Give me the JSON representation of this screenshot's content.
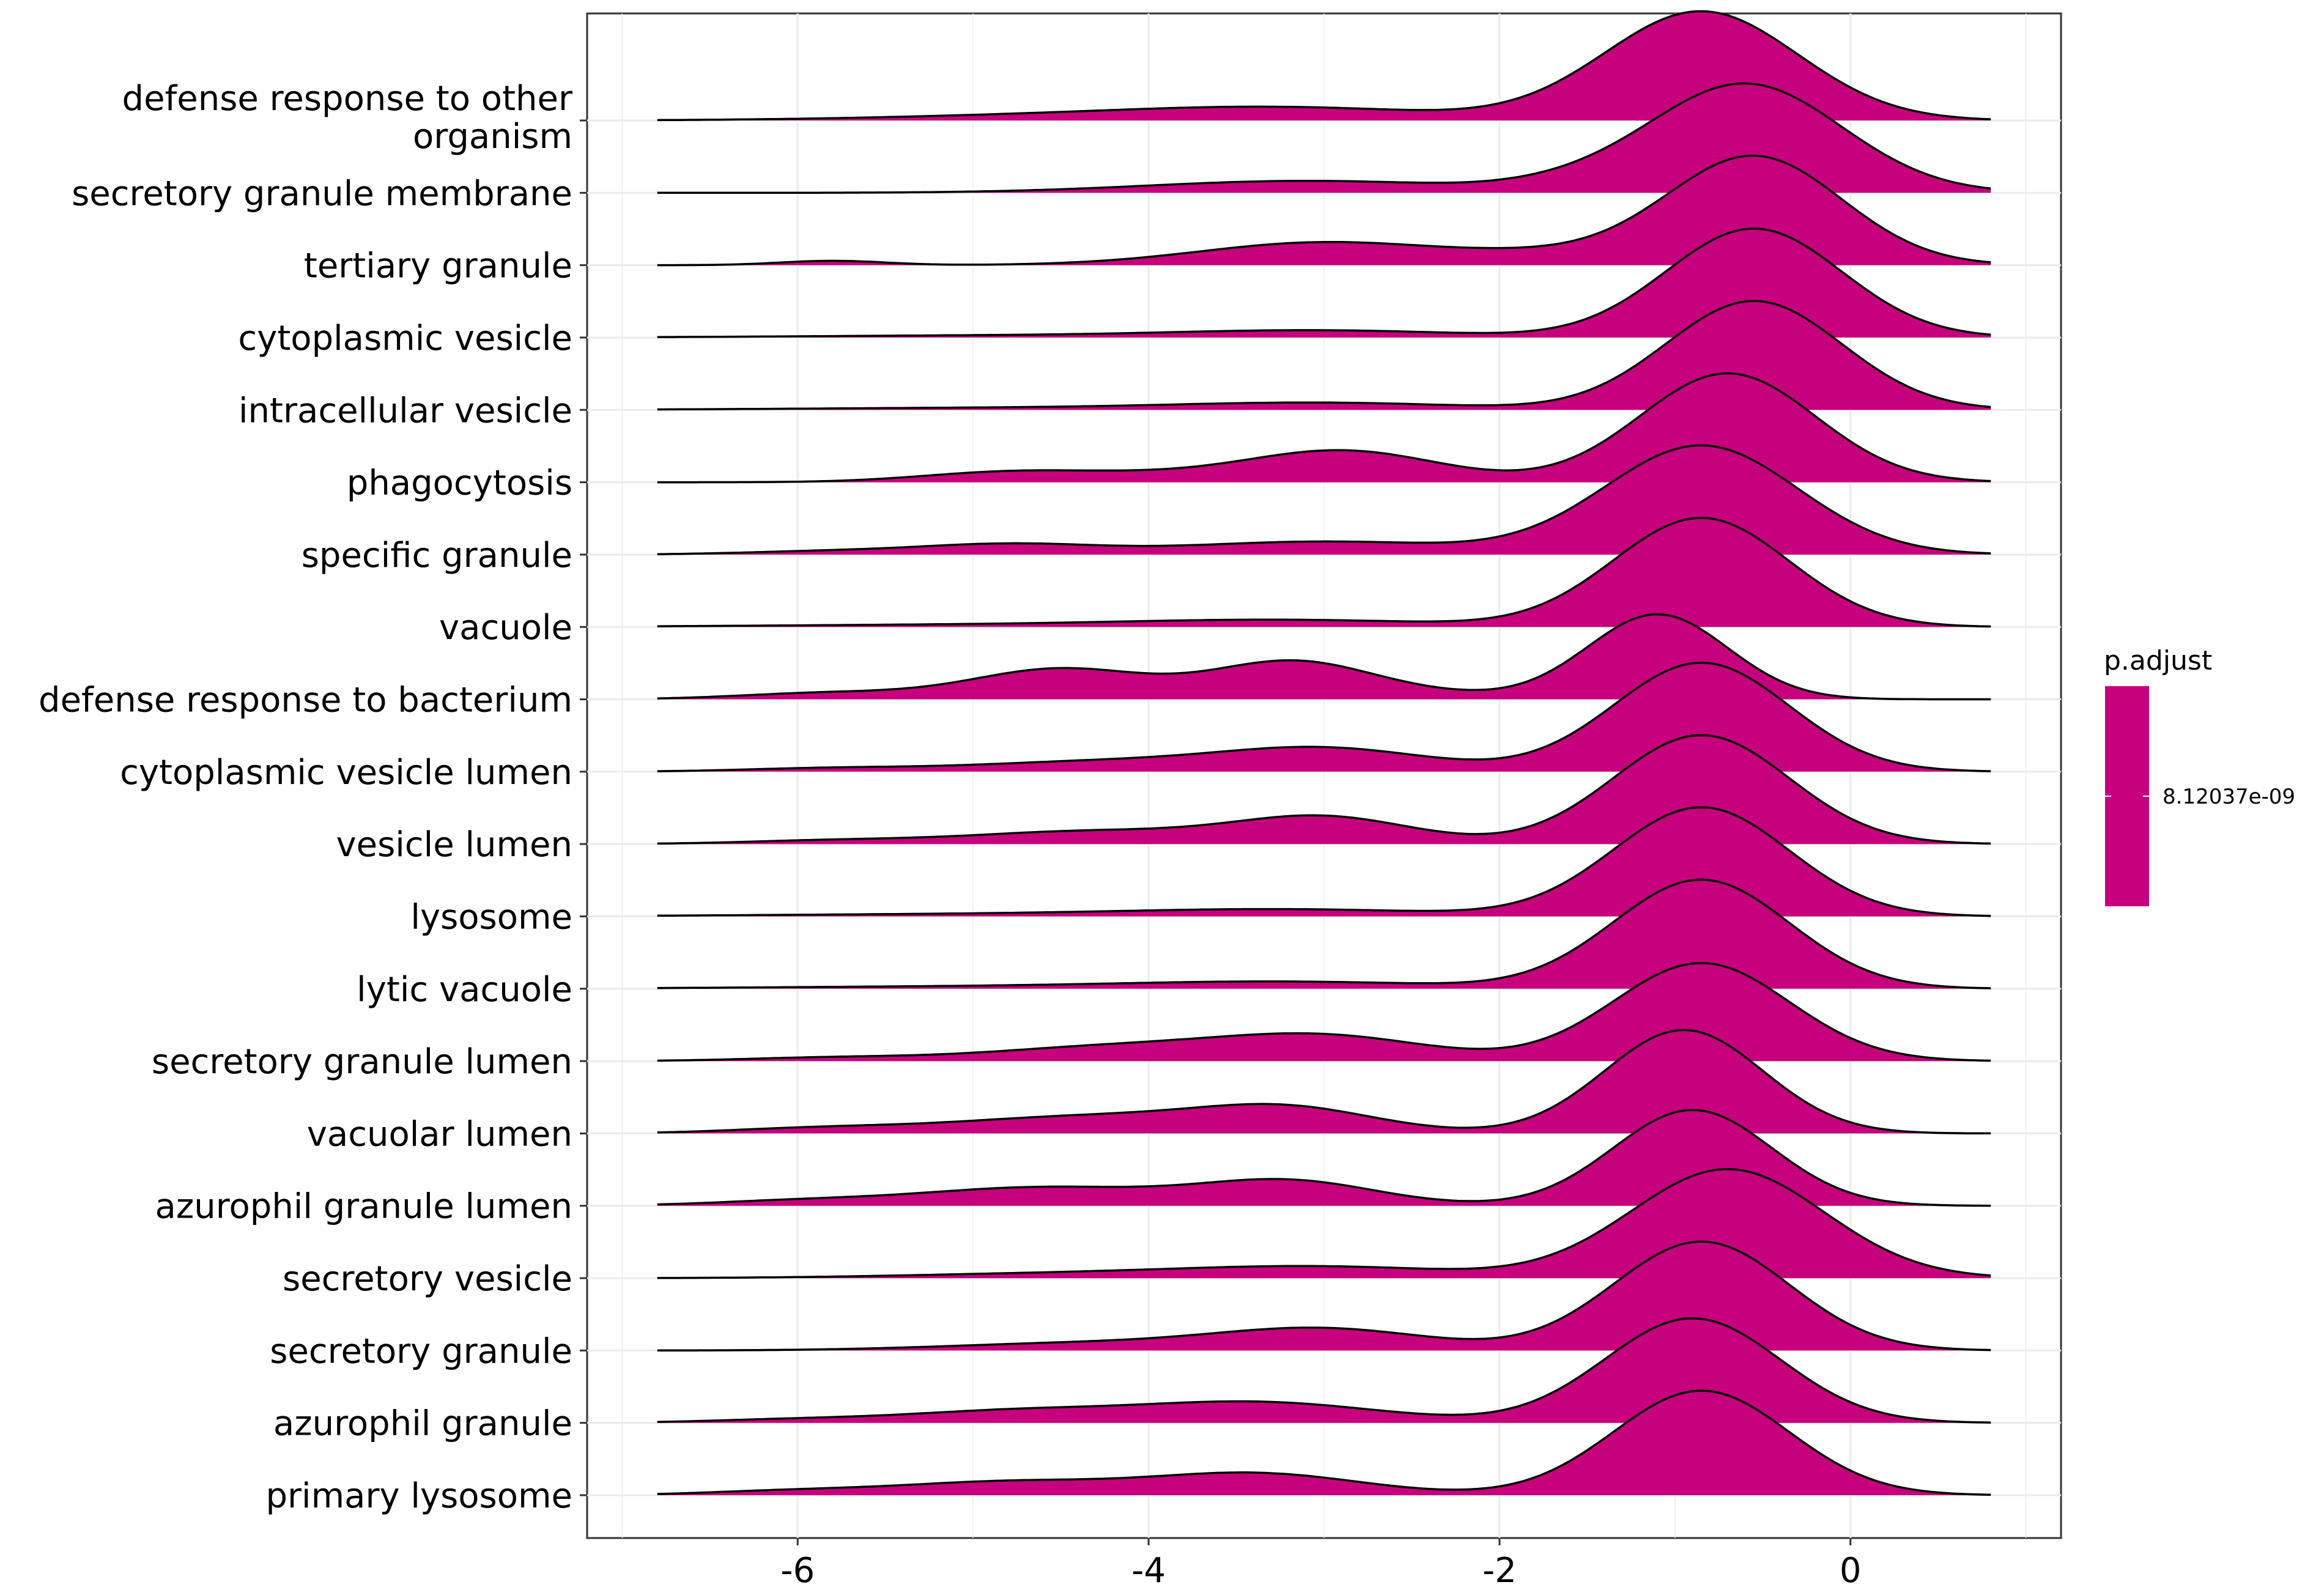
{
  "chart_data": {
    "type": "ridgeline",
    "xlabel": "",
    "ylabel": "",
    "xlim": [
      -7.2,
      1.2
    ],
    "x_ticks": [
      -6,
      -4,
      -2,
      0
    ],
    "x_tick_labels": [
      "-6",
      "-4",
      "-2",
      "0"
    ],
    "x_range": [
      -6.8,
      0.8
    ],
    "fill_color": "#C7007D",
    "line_color": "#000000",
    "grid": true,
    "legend": {
      "title": "p.adjust",
      "position": "right",
      "label": "8.12037e-09",
      "color": "#C7007D"
    },
    "categories_top_to_bottom": [
      "defense response to other\norganism",
      "secretory granule membrane",
      "tertiary granule",
      "cytoplasmic vesicle",
      "intracellular vesicle",
      "phagocytosis",
      "specific granule",
      "vacuole",
      "defense response to bacterium",
      "cytoplasmic vesicle lumen",
      "vesicle lumen",
      "lysosome",
      "lytic vacuole",
      "secretory granule lumen",
      "vacuolar lumen",
      "azurophil granule lumen",
      "secretory vesicle",
      "secretory granule",
      "azurophil granule",
      "primary lysosome"
    ],
    "series": [
      {
        "name": "defense response to other\norganism",
        "components": [
          [
            1.0,
            -0.85,
            0.55
          ],
          [
            0.11,
            -3.2,
            0.9
          ],
          [
            0.04,
            -4.6,
            1.0
          ]
        ]
      },
      {
        "name": "secretory granule membrane",
        "components": [
          [
            1.0,
            -0.6,
            0.55
          ],
          [
            0.11,
            -3.1,
            0.9
          ],
          [
            0.05,
            -1.6,
            0.4
          ]
        ]
      },
      {
        "name": "tertiary granule",
        "components": [
          [
            1.0,
            -0.55,
            0.5
          ],
          [
            0.21,
            -3.0,
            0.7
          ],
          [
            0.04,
            -5.8,
            0.3
          ],
          [
            0.08,
            -1.7,
            0.5
          ]
        ]
      },
      {
        "name": "cytoplasmic vesicle",
        "components": [
          [
            1.0,
            -0.55,
            0.5
          ],
          [
            0.06,
            -3.0,
            0.8
          ],
          [
            0.02,
            -4.7,
            1.2
          ]
        ]
      },
      {
        "name": "intracellular vesicle",
        "components": [
          [
            1.0,
            -0.55,
            0.5
          ],
          [
            0.06,
            -3.0,
            0.8
          ],
          [
            0.02,
            -4.7,
            1.2
          ]
        ]
      },
      {
        "name": "phagocytosis",
        "components": [
          [
            1.0,
            -0.7,
            0.5
          ],
          [
            0.29,
            -2.9,
            0.55
          ],
          [
            0.09,
            -4.8,
            0.5
          ],
          [
            0.05,
            -4.0,
            0.5
          ]
        ]
      },
      {
        "name": "specific granule",
        "components": [
          [
            1.0,
            -0.85,
            0.55
          ],
          [
            0.12,
            -3.0,
            0.8
          ],
          [
            0.09,
            -4.8,
            0.5
          ],
          [
            0.03,
            -5.8,
            0.5
          ]
        ]
      },
      {
        "name": "vacuole",
        "components": [
          [
            1.0,
            -0.85,
            0.5
          ],
          [
            0.06,
            -3.2,
            0.9
          ],
          [
            0.02,
            -5.0,
            1.2
          ]
        ]
      },
      {
        "name": "defense response to bacterium",
        "components": [
          [
            0.78,
            -1.1,
            0.4
          ],
          [
            0.33,
            -3.2,
            0.45
          ],
          [
            0.28,
            -4.5,
            0.5
          ],
          [
            0.06,
            -5.8,
            0.5
          ],
          [
            0.05,
            -2.5,
            0.5
          ]
        ]
      },
      {
        "name": "cytoplasmic vesicle lumen",
        "components": [
          [
            1.0,
            -0.85,
            0.5
          ],
          [
            0.21,
            -3.0,
            0.6
          ],
          [
            0.09,
            -4.3,
            0.7
          ],
          [
            0.03,
            -5.8,
            0.5
          ]
        ]
      },
      {
        "name": "vesicle lumen",
        "components": [
          [
            1.0,
            -0.85,
            0.5
          ],
          [
            0.24,
            -3.0,
            0.5
          ],
          [
            0.12,
            -4.3,
            0.7
          ],
          [
            0.03,
            -5.8,
            0.5
          ]
        ]
      },
      {
        "name": "lysosome",
        "components": [
          [
            1.0,
            -0.85,
            0.5
          ],
          [
            0.06,
            -3.2,
            0.9
          ],
          [
            0.02,
            -5.0,
            1.2
          ]
        ]
      },
      {
        "name": "lytic vacuole",
        "components": [
          [
            1.0,
            -0.85,
            0.5
          ],
          [
            0.06,
            -3.2,
            0.9
          ],
          [
            0.02,
            -5.0,
            1.2
          ]
        ]
      },
      {
        "name": "secretory granule lumen",
        "components": [
          [
            0.9,
            -0.85,
            0.5
          ],
          [
            0.22,
            -3.0,
            0.6
          ],
          [
            0.13,
            -4.2,
            0.7
          ],
          [
            0.03,
            -5.8,
            0.5
          ]
        ]
      },
      {
        "name": "vacuolar lumen",
        "components": [
          [
            0.95,
            -0.95,
            0.45
          ],
          [
            0.2,
            -3.2,
            0.5
          ],
          [
            0.16,
            -4.3,
            0.8
          ],
          [
            0.04,
            -5.9,
            0.5
          ]
        ]
      },
      {
        "name": "azurophil granule lumen",
        "components": [
          [
            0.88,
            -0.9,
            0.45
          ],
          [
            0.22,
            -3.2,
            0.5
          ],
          [
            0.17,
            -4.6,
            0.7
          ],
          [
            0.04,
            -6.0,
            0.5
          ]
        ]
      },
      {
        "name": "secretory vesicle",
        "components": [
          [
            1.0,
            -0.7,
            0.55
          ],
          [
            0.1,
            -3.0,
            0.8
          ],
          [
            0.04,
            -4.5,
            0.9
          ]
        ]
      },
      {
        "name": "secretory granule",
        "components": [
          [
            1.0,
            -0.85,
            0.5
          ],
          [
            0.19,
            -3.0,
            0.6
          ],
          [
            0.07,
            -4.3,
            0.8
          ]
        ]
      },
      {
        "name": "azurophil granule",
        "components": [
          [
            0.96,
            -0.9,
            0.5
          ],
          [
            0.19,
            -3.4,
            0.7
          ],
          [
            0.1,
            -4.8,
            0.6
          ],
          [
            0.03,
            -6.0,
            0.5
          ]
        ]
      },
      {
        "name": "primary lysosome",
        "components": [
          [
            0.96,
            -0.85,
            0.5
          ],
          [
            0.2,
            -3.4,
            0.6
          ],
          [
            0.12,
            -4.8,
            0.6
          ],
          [
            0.04,
            -6.0,
            0.5
          ]
        ]
      }
    ]
  }
}
